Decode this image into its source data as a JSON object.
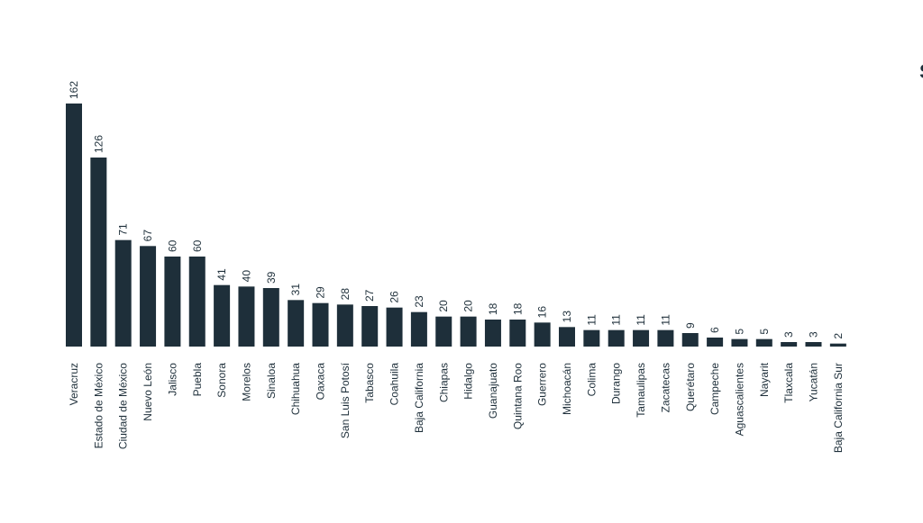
{
  "chart_data": {
    "type": "bar",
    "orientation": "vertical",
    "categories": [
      "Veracruz",
      "Estado de México",
      "Ciudad de México",
      "Nuevo León",
      "Jalisco",
      "Puebla",
      "Sonora",
      "Morelos",
      "Sinaloa",
      "Chihuahua",
      "Oaxaca",
      "San Luis Potosí",
      "Tabasco",
      "Coahuila",
      "Baja California",
      "Chiapas",
      "Hidalgo",
      "Guanajuato",
      "Quintana Roo",
      "Guerrero",
      "Michoacán",
      "Colima",
      "Durango",
      "Tamaulipas",
      "Zacatecas",
      "Querétaro",
      "Campeche",
      "Aguascalientes",
      "Nayarit",
      "Tlaxcala",
      "Yucatán",
      "Baja California Sur"
    ],
    "values": [
      162,
      126,
      71,
      67,
      60,
      60,
      41,
      40,
      39,
      31,
      29,
      28,
      27,
      26,
      23,
      20,
      20,
      18,
      18,
      16,
      13,
      11,
      11,
      11,
      11,
      9,
      6,
      5,
      5,
      3,
      3,
      2
    ],
    "title": "",
    "xlabel": "",
    "ylabel": "",
    "ylim": [
      0,
      162
    ],
    "grid": false,
    "value_labels": true,
    "label_rotation": "vertical",
    "bar_color": "#1e2f3a"
  },
  "edge_text": "S"
}
